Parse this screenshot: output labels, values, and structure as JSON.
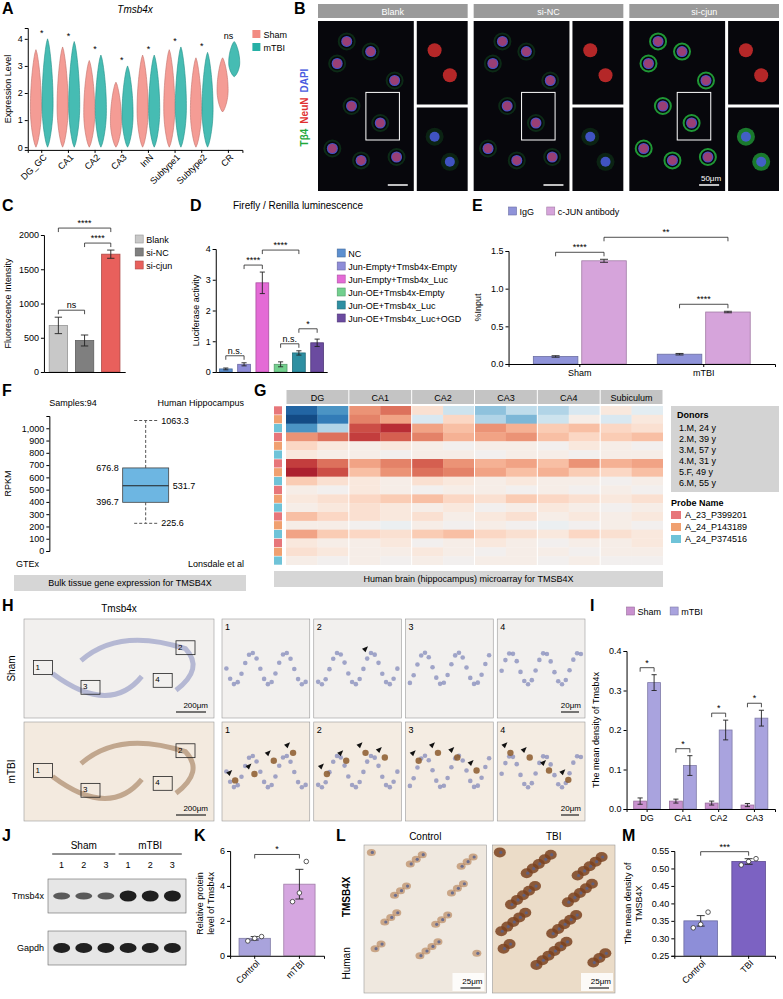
{
  "chart_data": [
    {
      "label": "A",
      "type": "violin",
      "title": "Tmsb4x",
      "ylabel": "Expression Level",
      "categories": [
        "DG_GC",
        "CA1",
        "CA2",
        "CA3",
        "InN",
        "Subtype1",
        "Subtype2",
        "CR"
      ],
      "ylim": [
        -0.1,
        4.4
      ],
      "yticks": [
        0,
        1,
        2,
        3,
        4
      ],
      "legend": "right",
      "series": [
        {
          "name": "Sham",
          "color": "#F28B82",
          "min": [
            0,
            0,
            0,
            0,
            0,
            0,
            0,
            1.3
          ],
          "max": [
            3.6,
            3.7,
            3.2,
            2.4,
            3.4,
            3.6,
            3.3,
            3.3
          ]
        },
        {
          "name": "mTBI",
          "color": "#26B0A6",
          "min": [
            0,
            0,
            0,
            0,
            0,
            0,
            0,
            2.6
          ],
          "max": [
            4.0,
            3.9,
            3.4,
            3.0,
            3.4,
            3.7,
            3.5,
            3.9
          ]
        }
      ],
      "annotations": [
        "*",
        "*",
        "*",
        "*",
        "*",
        "*",
        "*",
        "ns"
      ]
    },
    {
      "label": "B",
      "type": "fluorescence",
      "panels": [
        "Blank",
        "si-NC",
        "si-cjun"
      ],
      "channels": [
        {
          "name": "Tβ4",
          "color": "#22A83A"
        },
        {
          "name": "NeuN",
          "color": "#E03030"
        },
        {
          "name": "DAPI",
          "color": "#4A5CE0"
        }
      ],
      "scale_bar": "50μm"
    },
    {
      "label": "C",
      "type": "bar",
      "ylabel": "Fluorescence Intensity",
      "categories": [
        "Blank",
        "si-NC",
        "si-cjun"
      ],
      "values": [
        680,
        460,
        1720
      ],
      "errors": [
        120,
        80,
        60
      ],
      "colors": [
        "#C8C8C8",
        "#7F7F7F",
        "#E8605C"
      ],
      "ylim": [
        0,
        2000
      ],
      "yticks": [
        0,
        500,
        1000,
        1500,
        2000
      ],
      "tick_labels": "y",
      "legend": "right",
      "annotations": [
        {
          "from": "Blank",
          "to": "si-cjun",
          "text": "****"
        },
        {
          "from": "Blank",
          "to": "si-NC",
          "text": "ns"
        },
        {
          "from": "si-NC",
          "to": "si-cjun",
          "text": "****"
        }
      ]
    },
    {
      "label": "D",
      "type": "bar",
      "title": "Firefly / Renilla luminescence",
      "ylabel": "Luciferase activity",
      "categories": [
        "NC",
        "Jun-Empty+Tmsb4x-Empty",
        "Jun-Empty+Tmsb4x_Luc",
        "Jun-OE+Tmsb4x-Empty",
        "Jun-OE+Tmsb4x_Luc",
        "Jun-OE+Tmsb4x_Luc+OGD"
      ],
      "values": [
        0.1,
        0.25,
        2.9,
        0.25,
        0.62,
        0.95
      ],
      "errors": [
        0.03,
        0.05,
        0.35,
        0.08,
        0.07,
        0.12
      ],
      "colors": [
        "#5C8FD0",
        "#8E8CD8",
        "#E46BD6",
        "#72D08E",
        "#2E8FA2",
        "#6B4BA0"
      ],
      "ylim": [
        0,
        4
      ],
      "yticks": [
        0,
        1,
        2,
        3,
        4
      ],
      "tick_labels": "y",
      "legend": "right",
      "annotations": [
        {
          "from": "NC",
          "to": "Jun-Empty+Tmsb4x-Empty",
          "text": "n.s."
        },
        {
          "from": "Jun-Empty+Tmsb4x-Empty",
          "to": "Jun-Empty+Tmsb4x_Luc",
          "text": "****"
        },
        {
          "from": "Jun-Empty+Tmsb4x_Luc",
          "to": "Jun-OE+Tmsb4x_Luc",
          "text": "****"
        },
        {
          "from": "Jun-OE+Tmsb4x-Empty",
          "to": "Jun-OE+Tmsb4x_Luc",
          "text": "n.s."
        },
        {
          "from": "Jun-OE+Tmsb4x_Luc",
          "to": "Jun-OE+Tmsb4x_Luc+OGD",
          "text": "*"
        }
      ]
    },
    {
      "label": "E",
      "type": "bar",
      "ylabel": "%Input",
      "categories": [
        "Sham",
        "mTBI"
      ],
      "series": [
        {
          "name": "IgG",
          "color": "#8F93D9",
          "values": [
            0.1,
            0.13
          ],
          "errors": [
            0.01,
            0.01
          ]
        },
        {
          "name": "c-JUN antibody",
          "color": "#D6A4DB",
          "values": [
            1.37,
            0.69
          ],
          "errors": [
            0.02,
            0.01
          ]
        }
      ],
      "ylim": [
        0,
        1.5
      ],
      "yticks": [
        {
          "value": 0,
          "label": "0.0"
        },
        0.5,
        {
          "value": 1,
          "label": "1.0"
        },
        1.5
      ],
      "legend": "top",
      "annotations": [
        {
          "from": [
            "Sham",
            "IgG"
          ],
          "to": [
            "Sham",
            "c-JUN antibody"
          ],
          "text": "****"
        },
        {
          "from": [
            "mTBI",
            "IgG"
          ],
          "to": [
            "mTBI",
            "c-JUN antibody"
          ],
          "text": "****"
        },
        {
          "from": [
            "Sham",
            "c-JUN antibody"
          ],
          "to": [
            "mTBI",
            "c-JUN antibody"
          ],
          "text": "**"
        }
      ]
    },
    {
      "label": "F",
      "type": "box",
      "title": "Samples:94",
      "subtitle": "Human Hippocampus",
      "ylabel": "RPKM",
      "stats": {
        "min": 225.6,
        "q1": 396.7,
        "median": 531.7,
        "q3": 676.8,
        "max": 1063.3
      },
      "ylim": [
        0,
        1100
      ],
      "yticks": [
        0,
        100,
        200,
        300,
        400,
        500,
        600,
        700,
        800,
        900,
        {
          "value": 1000,
          "label": "1,000"
        }
      ],
      "color": "#6DB6E2",
      "data_labels": true,
      "annotations": [
        "GTEx",
        "Lonsdale et al"
      ],
      "caption": "Bulk tissue gene expression for TMSB4X"
    },
    {
      "label": "G",
      "type": "heatmap",
      "categories": [
        "DG",
        "DG",
        "CA1",
        "CA1",
        "CA2",
        "CA2",
        "CA3",
        "CA3",
        "CA4",
        "CA4",
        "Subiculum",
        "Subiculum"
      ],
      "zlim": [
        -2,
        2
      ],
      "cells": [
        [
          -1.6,
          -1.2,
          0.9,
          1.1,
          0.3,
          -0.4,
          -0.8,
          -0.5,
          -0.6,
          -0.3,
          0.2,
          -0.2
        ],
        [
          -1.8,
          -1.4,
          1.0,
          0.8,
          -0.3,
          0.4,
          -0.6,
          -0.9,
          -0.4,
          0.1,
          -0.3,
          0.2
        ],
        [
          -1.2,
          -0.6,
          1.3,
          1.5,
          0.8,
          0.6,
          0.9,
          0.7,
          0.5,
          0.6,
          0.4,
          0.3
        ],
        [
          0.9,
          1.1,
          1.4,
          1.2,
          1.0,
          0.7,
          0.8,
          0.9,
          0.6,
          0.4,
          0.5,
          0.6
        ],
        [
          0.4,
          0.2,
          0.1,
          0.2,
          0.1,
          0.0,
          0.1,
          0.1,
          0.0,
          0.2,
          0.1,
          0.0
        ],
        [
          0.2,
          0.1,
          0.1,
          0.0,
          0.1,
          0.1,
          0.0,
          0.1,
          0.1,
          0.0,
          0.1,
          0.1
        ],
        [
          1.4,
          1.1,
          0.8,
          1.0,
          1.2,
          0.9,
          0.7,
          0.8,
          0.6,
          0.9,
          0.7,
          0.8
        ],
        [
          1.6,
          1.3,
          0.6,
          0.9,
          1.1,
          1.0,
          0.8,
          0.6,
          0.7,
          0.5,
          0.4,
          0.6
        ],
        [
          0.5,
          0.3,
          0.2,
          0.1,
          0.3,
          0.2,
          0.1,
          0.2,
          0.1,
          0.1,
          0.0,
          0.1
        ],
        [
          0.1,
          0.0,
          0.2,
          0.1,
          0.0,
          0.1,
          0.1,
          0.0,
          0.1,
          0.0,
          0.1,
          0.0
        ],
        [
          0.2,
          0.3,
          0.4,
          0.5,
          0.6,
          0.4,
          0.3,
          0.5,
          0.4,
          0.3,
          0.2,
          0.3
        ],
        [
          0.1,
          0.2,
          0.3,
          0.2,
          0.1,
          0.2,
          0.0,
          0.1,
          0.2,
          0.1,
          0.0,
          0.1
        ],
        [
          0.6,
          0.4,
          0.3,
          0.2,
          0.3,
          0.1,
          0.2,
          0.3,
          0.1,
          0.2,
          0.1,
          0.2
        ],
        [
          0.1,
          0.1,
          0.0,
          -0.1,
          0.1,
          0.0,
          0.1,
          0.0,
          -0.1,
          0.0,
          0.1,
          0.0
        ],
        [
          0.8,
          0.5,
          0.4,
          0.3,
          0.5,
          0.6,
          0.4,
          0.3,
          0.2,
          0.4,
          0.3,
          0.2
        ],
        [
          0.2,
          0.1,
          0.1,
          0.2,
          0.0,
          0.1,
          0.2,
          0.1,
          0.0,
          0.1,
          0.1,
          0.2
        ],
        [
          0.3,
          0.2,
          0.1,
          0.1,
          0.2,
          0.1,
          0.0,
          0.1,
          0.1,
          0.0,
          0.1,
          0.1
        ],
        [
          0.1,
          0.0,
          0.1,
          0.0,
          0.1,
          0.0,
          0.1,
          0.1,
          0.0,
          0.1,
          0.0,
          0.0
        ]
      ],
      "row_probes": [
        "A_23_P399201",
        "A_24_P143189",
        "A_24_P374516",
        "A_23_P399201",
        "A_24_P143189",
        "A_24_P374516",
        "A_23_P399201",
        "A_24_P143189",
        "A_24_P374516",
        "A_23_P399201",
        "A_24_P143189",
        "A_24_P374516",
        "A_23_P399201",
        "A_24_P143189",
        "A_24_P374516",
        "A_23_P399201",
        "A_24_P143189",
        "A_24_P374516"
      ],
      "donors_title": "Donors",
      "donors": [
        "1.M, 24 y",
        "2.M, 39 y",
        "3.M, 57 y",
        "4.M, 31 y",
        "5.F, 49 y",
        "6.M, 55 y"
      ],
      "probes_title": "Probe Name",
      "probes": [
        {
          "name": "A_23_P399201",
          "color": "#E7767A"
        },
        {
          "name": "A_24_P143189",
          "color": "#F0A070"
        },
        {
          "name": "A_24_P374516",
          "color": "#6FC3D8"
        }
      ],
      "caption": "Human brain (hippocampus) microarray for TMSB4X"
    },
    {
      "label": "H",
      "type": "immunohistochemistry",
      "title": "Tmsb4x",
      "rows": [
        "Sham",
        "mTBI"
      ],
      "insets": [
        "1",
        "2",
        "3",
        "4"
      ],
      "scale_bars": [
        "200μm",
        "20μm"
      ]
    },
    {
      "label": "I",
      "type": "bar",
      "ylabel": "The mean density of Tmsb4x",
      "categories": [
        "DG",
        "CA1",
        "CA2",
        "CA3"
      ],
      "series": [
        {
          "name": "Sham",
          "color": "#C991CF",
          "values": [
            0.02,
            0.02,
            0.015,
            0.01
          ],
          "errors": [
            0.008,
            0.005,
            0.005,
            0.004
          ]
        },
        {
          "name": "mTBI",
          "color": "#A9A3DE",
          "values": [
            0.32,
            0.11,
            0.2,
            0.23
          ],
          "errors": [
            0.02,
            0.025,
            0.025,
            0.02
          ]
        }
      ],
      "ylim": [
        0,
        0.4
      ],
      "yticks": [
        {
          "value": 0,
          "label": "0.0"
        },
        0.1,
        0.2,
        0.3,
        0.4
      ],
      "legend": "top",
      "annotations": [
        {
          "from": [
            "DG",
            "Sham"
          ],
          "to": [
            "DG",
            "mTBI"
          ],
          "text": "*"
        },
        {
          "from": [
            "CA1",
            "Sham"
          ],
          "to": [
            "CA1",
            "mTBI"
          ],
          "text": "*"
        },
        {
          "from": [
            "CA2",
            "Sham"
          ],
          "to": [
            "CA2",
            "mTBI"
          ],
          "text": "*"
        },
        {
          "from": [
            "CA3",
            "Sham"
          ],
          "to": [
            "CA3",
            "mTBI"
          ],
          "text": "*"
        }
      ]
    },
    {
      "label": "J",
      "type": "blot",
      "groups": [
        "Sham",
        "mTBI"
      ],
      "lanes": [
        "1",
        "2",
        "3",
        "1",
        "2",
        "3"
      ],
      "bands": [
        "Tmsb4x",
        "Gapdh"
      ]
    },
    {
      "label": "K",
      "type": "bar",
      "ylabel": "Relative protein level of Tmsb4x",
      "categories": [
        "Control",
        "mTBI"
      ],
      "values": [
        1.0,
        4.1
      ],
      "errors": [
        0.1,
        0.85
      ],
      "points": [
        [
          0.85,
          1.0,
          1.1
        ],
        [
          3.1,
          3.6,
          5.4
        ]
      ],
      "colors": [
        "#A9A3DC",
        "#D5A6E0"
      ],
      "ylim": [
        0,
        6
      ],
      "yticks": [
        0,
        2,
        4,
        6
      ],
      "annotations": [
        {
          "from": "Control",
          "to": "mTBI",
          "text": "*"
        }
      ]
    },
    {
      "label": "L",
      "type": "immunohistochemistry",
      "title": "TMSB4X",
      "row_label": "Human",
      "columns": [
        "Control",
        "TBI"
      ],
      "scale_bars": [
        "25μm",
        "25μm"
      ]
    },
    {
      "label": "M",
      "type": "bar",
      "ylabel": "The mean density of TMSB4X",
      "categories": [
        "Control",
        "TBI"
      ],
      "values": [
        0.35,
        0.52
      ],
      "errors": [
        0.015,
        0.008
      ],
      "points": [
        [
          0.33,
          0.34,
          0.375
        ],
        [
          0.51,
          0.52,
          0.528
        ]
      ],
      "colors": [
        "#8D8ED8",
        "#7C62C2"
      ],
      "ylim": [
        0.25,
        0.55
      ],
      "yticks": [
        0.25,
        {
          "value": 0.3,
          "label": "0.30"
        },
        0.35,
        {
          "value": 0.4,
          "label": "0.40"
        },
        0.45,
        {
          "value": 0.5,
          "label": "0.50"
        },
        0.55
      ],
      "annotations": [
        {
          "from": "Control",
          "to": "TBI",
          "text": "***"
        }
      ]
    }
  ]
}
